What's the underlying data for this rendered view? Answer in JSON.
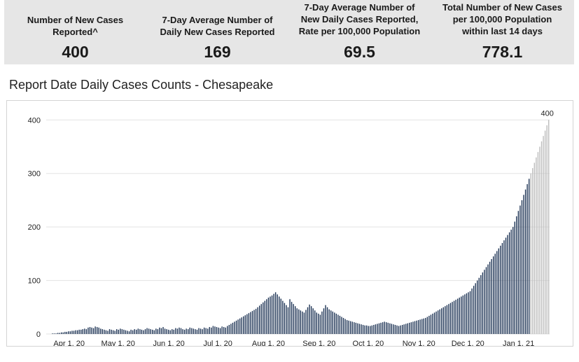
{
  "kpis": [
    {
      "label_lines": [
        "Number of New Cases",
        "Reported^"
      ],
      "value": "400"
    },
    {
      "label_lines": [
        "7-Day Average Number of",
        "Daily New Cases Reported"
      ],
      "value": "169"
    },
    {
      "label_lines": [
        "7-Day Average Number of",
        "New Daily Cases Reported,",
        "Rate per 100,000 Population"
      ],
      "value": "69.5"
    },
    {
      "label_lines": [
        "Total Number of New Cases",
        "per 100,000 Population",
        "within last 14 days"
      ],
      "value": "778.1"
    }
  ],
  "chart_title": "Report Date Daily Cases Counts - Chesapeake",
  "chart_data": {
    "type": "bar",
    "title": "Report Date Daily Cases Counts - Chesapeake",
    "xlabel": "",
    "ylabel": "",
    "ylim": [
      0,
      420
    ],
    "yticks": [
      0,
      100,
      200,
      300,
      400
    ],
    "grid": true,
    "x_start": "2020-03-18",
    "x_end": "2021-01-20",
    "x_ticks": [
      {
        "date": "2020-04-01",
        "label": "Apr 1, 20"
      },
      {
        "date": "2020-05-01",
        "label": "May 1, 20"
      },
      {
        "date": "2020-06-01",
        "label": "Jun 1, 20"
      },
      {
        "date": "2020-07-01",
        "label": "Jul 1, 20"
      },
      {
        "date": "2020-08-01",
        "label": "Aug 1, 20"
      },
      {
        "date": "2020-09-01",
        "label": "Sep 1, 20"
      },
      {
        "date": "2020-10-01",
        "label": "Oct 1, 20"
      },
      {
        "date": "2020-11-01",
        "label": "Nov 1, 20"
      },
      {
        "date": "2020-12-01",
        "label": "Dec 1, 20"
      },
      {
        "date": "2021-01-01",
        "label": "Jan 1, 21"
      }
    ],
    "peak_label": "400",
    "series": [
      {
        "kind": "bar",
        "values": [
          0,
          0,
          0,
          1,
          1,
          1,
          2,
          2,
          3,
          3,
          4,
          4,
          5,
          5,
          6,
          6,
          7,
          7,
          8,
          8,
          9,
          10,
          9,
          12,
          13,
          12,
          11,
          14,
          13,
          12,
          10,
          9,
          8,
          7,
          6,
          9,
          8,
          7,
          6,
          9,
          8,
          10,
          9,
          8,
          7,
          6,
          5,
          8,
          7,
          9,
          8,
          10,
          9,
          8,
          7,
          9,
          11,
          10,
          9,
          8,
          7,
          10,
          9,
          12,
          11,
          13,
          10,
          9,
          8,
          7,
          9,
          8,
          11,
          10,
          12,
          11,
          9,
          8,
          10,
          9,
          12,
          11,
          10,
          9,
          8,
          11,
          10,
          9,
          12,
          11,
          10,
          13,
          12,
          15,
          14,
          13,
          12,
          11,
          14,
          13,
          12,
          15,
          17,
          19,
          21,
          23,
          25,
          27,
          29,
          31,
          33,
          35,
          37,
          39,
          41,
          43,
          45,
          47,
          50,
          53,
          56,
          59,
          62,
          65,
          68,
          70,
          72,
          75,
          78,
          74,
          70,
          66,
          62,
          58,
          54,
          50,
          65,
          60,
          56,
          52,
          48,
          46,
          44,
          42,
          40,
          45,
          50,
          55,
          52,
          48,
          44,
          40,
          38,
          36,
          42,
          48,
          54,
          50,
          46,
          44,
          42,
          40,
          38,
          36,
          34,
          32,
          30,
          28,
          26,
          25,
          24,
          23,
          22,
          21,
          20,
          19,
          18,
          17,
          16,
          16,
          15,
          15,
          16,
          17,
          18,
          19,
          20,
          21,
          22,
          23,
          22,
          21,
          20,
          19,
          18,
          17,
          16,
          15,
          16,
          17,
          18,
          19,
          20,
          21,
          22,
          23,
          24,
          25,
          26,
          27,
          28,
          29,
          30,
          32,
          34,
          36,
          38,
          40,
          42,
          44,
          46,
          48,
          50,
          52,
          54,
          56,
          58,
          60,
          62,
          64,
          66,
          68,
          70,
          72,
          74,
          76,
          78,
          80,
          85,
          90,
          95,
          100,
          105,
          110,
          115,
          120,
          125,
          130,
          135,
          140,
          145,
          150,
          155,
          160,
          165,
          170,
          175,
          180,
          185,
          190,
          195,
          200,
          210,
          220,
          230,
          240,
          250,
          260,
          270,
          280,
          290,
          300,
          310,
          320,
          330,
          340,
          350,
          360,
          370,
          380,
          390,
          400
        ]
      },
      {
        "kind": "line",
        "values": []
      }
    ]
  }
}
